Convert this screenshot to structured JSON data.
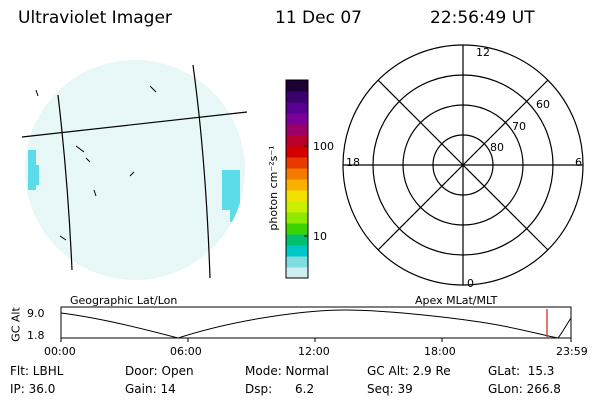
{
  "header": {
    "instrument": "Ultraviolet Imager",
    "date": "11 Dec 07",
    "time": "22:56:49 UT"
  },
  "colorbar": {
    "unit_label": "photon cm⁻²s⁻¹",
    "ticks": [
      "100",
      "10"
    ],
    "colors": [
      "#1a0033",
      "#3a006b",
      "#5a0090",
      "#7a0099",
      "#9a0066",
      "#b8002a",
      "#d40000",
      "#e83a00",
      "#f47a00",
      "#fbb000",
      "#f2e000",
      "#c8f000",
      "#8ee800",
      "#3cd400",
      "#00c070",
      "#00c8c8",
      "#7fdce0",
      "#cfeef0"
    ]
  },
  "polar_plot": {
    "lat_labels": [
      "60",
      "70",
      "80"
    ],
    "mlt_labels": {
      "top": "12",
      "left": "18",
      "right": "6",
      "bottom": "0"
    }
  },
  "timeline": {
    "left_label": "Geographic Lat/Lon",
    "right_label": "Apex MLat/MLT",
    "y_axis_title": "GC Alt",
    "y_ticks": [
      "9.0",
      "1.8"
    ],
    "x_ticks": [
      "00:00",
      "06:00",
      "12:00",
      "18:00",
      "23:59"
    ],
    "marker_color": "#d04030"
  },
  "status": {
    "flt": "Flt: LBHL",
    "ip": "IP: 36.0",
    "door": "Door: Open",
    "gain": "Gain: 14",
    "mode": "Mode: Normal",
    "dsp": "Dsp:      6.2",
    "gc_alt": "GC Alt: 2.9 Re",
    "seq": "Seq: 39",
    "glat": "GLat:  15.3",
    "glon": "GLon: 266.8"
  }
}
